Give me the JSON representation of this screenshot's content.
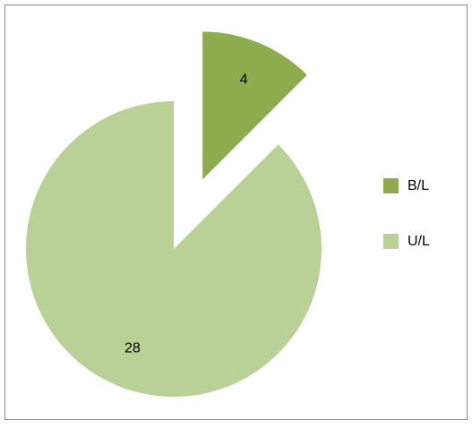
{
  "chart_data": {
    "type": "pie",
    "categories": [
      "B/L",
      "U/L"
    ],
    "values": [
      4,
      28
    ],
    "colors": [
      "#8cac4e",
      "#b9d097"
    ],
    "legend": "right"
  }
}
